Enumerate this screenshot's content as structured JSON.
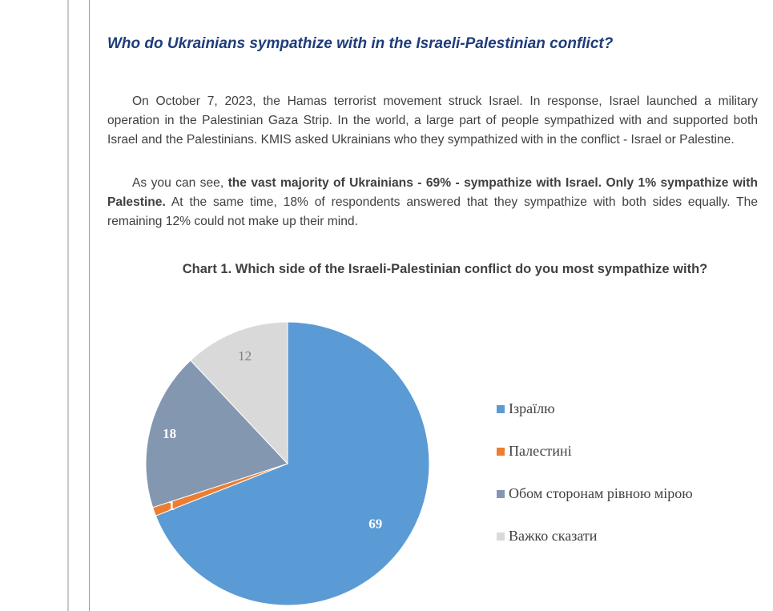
{
  "article": {
    "heading": "Who do Ukrainians sympathize with in the Israeli-Palestinian conflict?",
    "paragraph1": "On October 7, 2023, the Hamas terrorist movement struck Israel. In response, Israel launched a military operation in the Palestinian Gaza Strip. In the world, a large part of people sympathized with and supported both Israel and the Palestinians. KMIS asked Ukrainians who they sympathized with in the conflict - Israel or Palestine.",
    "paragraph2_lead": "As you can see, ",
    "paragraph2_bold": "the vast majority of Ukrainians - 69% - sympathize with Israel. Only 1% sympathize with Palestine.",
    "paragraph2_rest": " At the same time, 18% of respondents answered that they sympathize with both sides equally. The remaining 12% could not make up their mind."
  },
  "chart_data": {
    "type": "pie",
    "title": "Chart 1. Which side of the Israeli-Palestinian conflict do you most sympathize with?",
    "categories": [
      "Ізраїлю",
      "Палестині",
      "Обом сторонам рівною мірою",
      "Важко сказати"
    ],
    "values": [
      69,
      1,
      18,
      12
    ],
    "labels": [
      "69",
      "1",
      "18",
      "12"
    ],
    "colors": [
      "#5b9bd5",
      "#ed7d31",
      "#8497b0",
      "#d9d9d9"
    ],
    "label_colors": [
      "#ffffff",
      "#ffffff",
      "#ffffff",
      "#7f7f7f"
    ],
    "legend_placement": "right",
    "start_angle": "top, clockwise"
  }
}
